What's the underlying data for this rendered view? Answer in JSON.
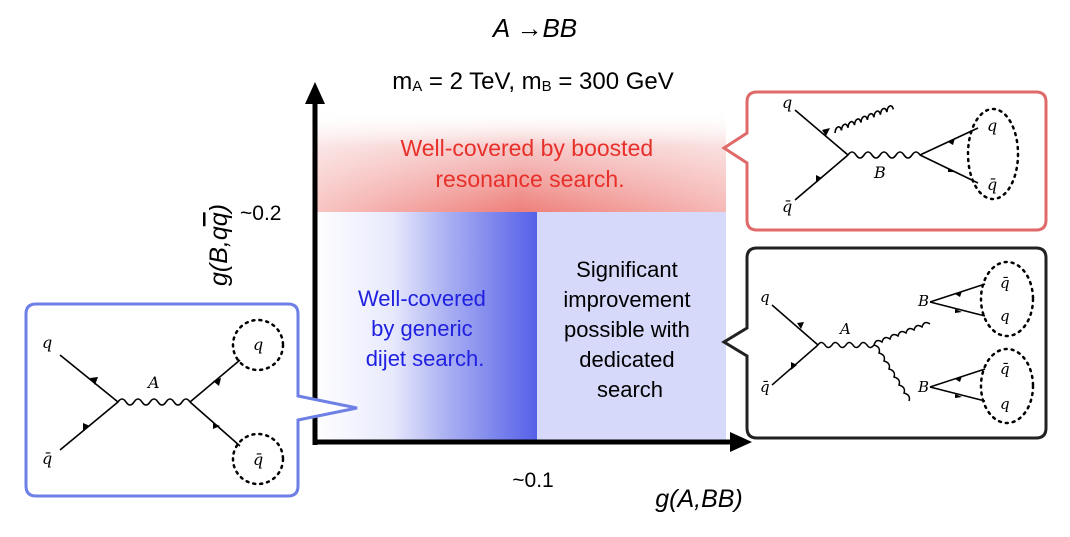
{
  "title": "A →BB",
  "subtitle": {
    "m_a_main": "m",
    "m_a_sub": "A",
    "m_a_value": " = 2 TeV, m",
    "m_b_sub": "B",
    "m_b_value": " = 300 GeV"
  },
  "axes": {
    "y_label": "g(B,qq̅)",
    "y_label_parts": [
      "g(B,q",
      "q",
      ")"
    ],
    "x_label": "g(A,BB)",
    "y_tick": "~0.2",
    "x_tick": "~0.1"
  },
  "regions": {
    "boosted": [
      "Well-covered by boosted",
      "resonance search."
    ],
    "generic": [
      "Well-covered",
      "by generic",
      "dijet search."
    ],
    "improvement": [
      "Significant",
      "improvement",
      "possible with",
      "dedicated",
      "search"
    ]
  },
  "colors": {
    "boosted_text": "#e8302a",
    "generic_text": "#2020e0",
    "red_box": "#e06a6a",
    "blue_box": "#6e7fe6",
    "black_box": "#222222"
  },
  "feynman": {
    "q": "q",
    "qbar": "q̄",
    "A": "A",
    "B": "B"
  }
}
